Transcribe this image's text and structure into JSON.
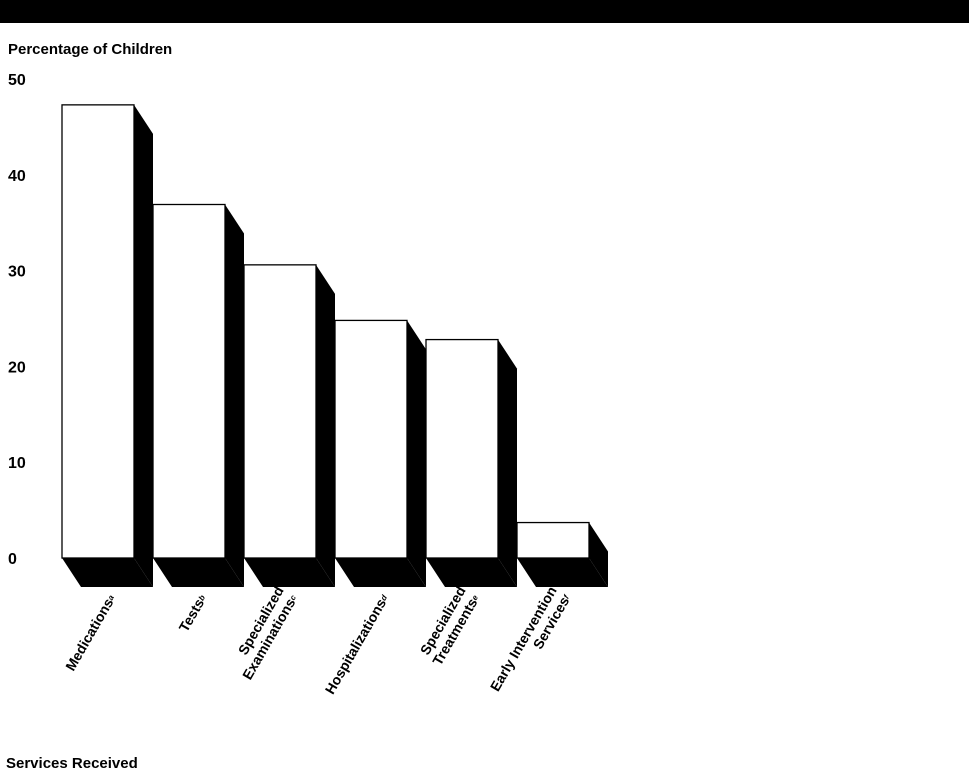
{
  "chart_data": {
    "type": "bar",
    "style": "3d",
    "ylabel": "Percentage of Children",
    "xlabel": "Services Received",
    "ylim": [
      0,
      50
    ],
    "yticks": [
      0,
      10,
      20,
      30,
      40,
      50
    ],
    "categories": [
      {
        "lines": [
          "Medications"
        ],
        "sup": "a"
      },
      {
        "lines": [
          "Tests"
        ],
        "sup": "b"
      },
      {
        "lines": [
          "Specialized",
          "Examinations"
        ],
        "sup": "c"
      },
      {
        "lines": [
          "Hospitalizations"
        ],
        "sup": "d"
      },
      {
        "lines": [
          "Specialized",
          "Treatments"
        ],
        "sup": "e"
      },
      {
        "lines": [
          "Early Intervention",
          "Services"
        ],
        "sup": "f"
      }
    ],
    "values": [
      47.3,
      36.9,
      30.6,
      24.8,
      22.8,
      3.7
    ],
    "colors": {
      "face": "#ffffff",
      "shadow": "#000000",
      "outline": "#000000"
    },
    "grid": false,
    "legend": "none"
  }
}
